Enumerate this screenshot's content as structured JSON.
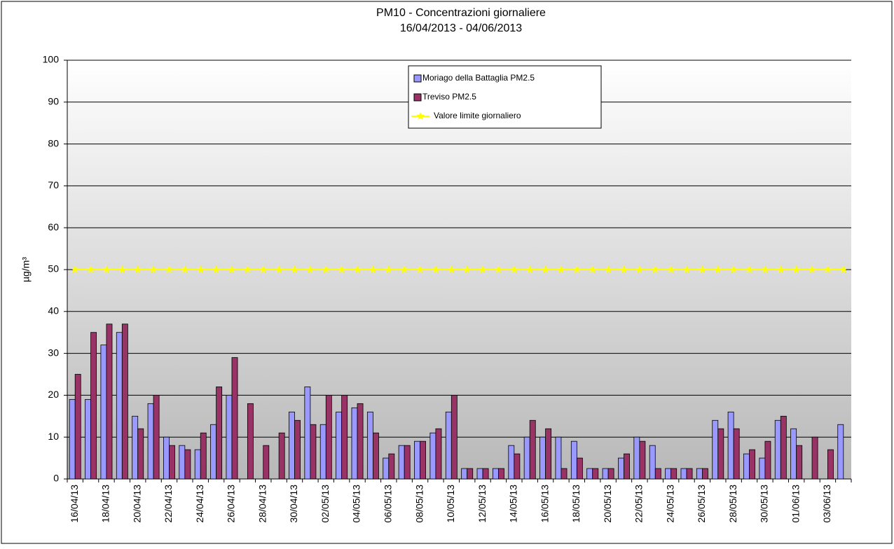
{
  "chart_data": {
    "type": "bar",
    "title": "PM10 - Concentrazioni giornaliere",
    "subtitle": "16/04/2013 - 04/06/2013",
    "y_label": "µg/m³",
    "categories": [
      "16/04/13",
      null,
      "18/04/13",
      null,
      "20/04/13",
      null,
      "22/04/13",
      null,
      "24/04/13",
      null,
      "26/04/13",
      null,
      "28/04/13",
      null,
      "30/04/13",
      null,
      "02/05/13",
      null,
      "04/05/13",
      null,
      "06/05/13",
      null,
      "08/05/13",
      null,
      "10/05/13",
      null,
      "12/05/13",
      null,
      "14/05/13",
      null,
      "16/05/13",
      null,
      "18/05/13",
      null,
      "20/05/13",
      null,
      "22/05/13",
      null,
      "24/05/13",
      null,
      "26/05/13",
      null,
      "28/05/13",
      null,
      "30/05/13",
      null,
      "01/06/13",
      null,
      "03/06/13",
      null
    ],
    "series": [
      {
        "name": "Moriago della Battaglia PM2.5",
        "type": "bar",
        "color": "#9999ff",
        "values": [
          19,
          19,
          32,
          35,
          15,
          18,
          10,
          8,
          7,
          13,
          20,
          null,
          null,
          null,
          16,
          22,
          13,
          16,
          17,
          16,
          5,
          8,
          9,
          11,
          16,
          2.5,
          2.5,
          2.5,
          8,
          10,
          10,
          10,
          9,
          2.5,
          2.5,
          5,
          10,
          8,
          2.5,
          2.5,
          2.5,
          14,
          16,
          6,
          5,
          14,
          12,
          null,
          null,
          13
        ]
      },
      {
        "name": "Treviso PM2.5",
        "type": "bar",
        "color": "#993366",
        "values": [
          25,
          35,
          37,
          37,
          12,
          20,
          8,
          7,
          11,
          22,
          29,
          18,
          8,
          11,
          14,
          13,
          20,
          20,
          18,
          11,
          6,
          8,
          9,
          12,
          20,
          2.5,
          2.5,
          2.5,
          6,
          14,
          12,
          2.5,
          5,
          2.5,
          2.5,
          6,
          9,
          2.5,
          2.5,
          2.5,
          2.5,
          12,
          12,
          7,
          9,
          15,
          8,
          10,
          7,
          null
        ]
      },
      {
        "name": "Valore limite giornaliero",
        "type": "line",
        "color": "#ffff00",
        "values": [
          50,
          50,
          50,
          50,
          50,
          50,
          50,
          50,
          50,
          50,
          50,
          50,
          50,
          50,
          50,
          50,
          50,
          50,
          50,
          50,
          50,
          50,
          50,
          50,
          50,
          50,
          50,
          50,
          50,
          50,
          50,
          50,
          50,
          50,
          50,
          50,
          50,
          50,
          50,
          50,
          50,
          50,
          50,
          50,
          50,
          50,
          50,
          50,
          50,
          50
        ]
      }
    ],
    "ylim": [
      0,
      100
    ],
    "yticks": [
      0,
      10,
      20,
      30,
      40,
      50,
      60,
      70,
      80,
      90,
      100
    ],
    "grid": true,
    "legend_position": "top"
  }
}
